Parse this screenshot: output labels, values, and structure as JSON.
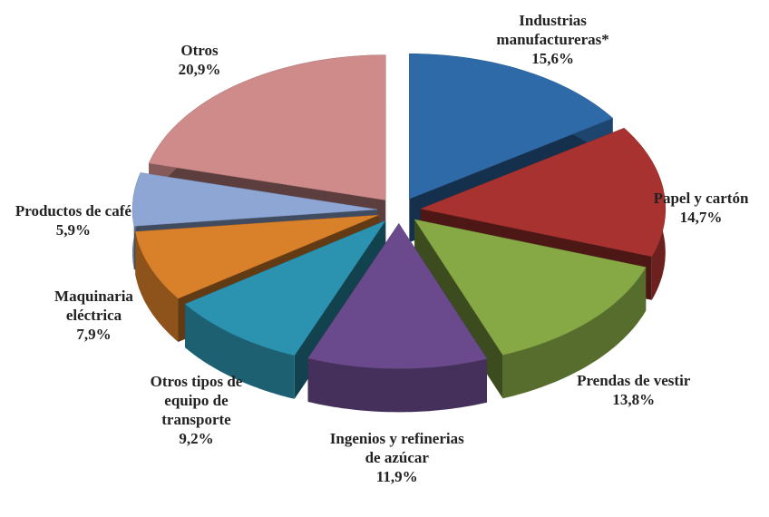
{
  "chart_data": {
    "type": "pie3d",
    "categories": [
      "Industrias manufactureras*",
      "Papel y cartón",
      "Prendas de vestir",
      "Ingenios y refinerias de azúcar",
      "Otros tipos de equipo de transporte",
      "Maquinaria eléctrica",
      "Productos de café",
      "Otros"
    ],
    "values": [
      15.6,
      14.7,
      13.8,
      11.9,
      9.2,
      7.9,
      5.9,
      20.9
    ],
    "value_labels": [
      "15,6%",
      "14,7%",
      "13,8%",
      "11,9%",
      "9,2%",
      "7,9%",
      "5,9%",
      "20,9%"
    ],
    "colors": [
      "#2e6aa8",
      "#a8322f",
      "#86a845",
      "#6a4a8c",
      "#2b93b0",
      "#d9802a",
      "#8ea6d4",
      "#cf8a8a"
    ]
  }
}
